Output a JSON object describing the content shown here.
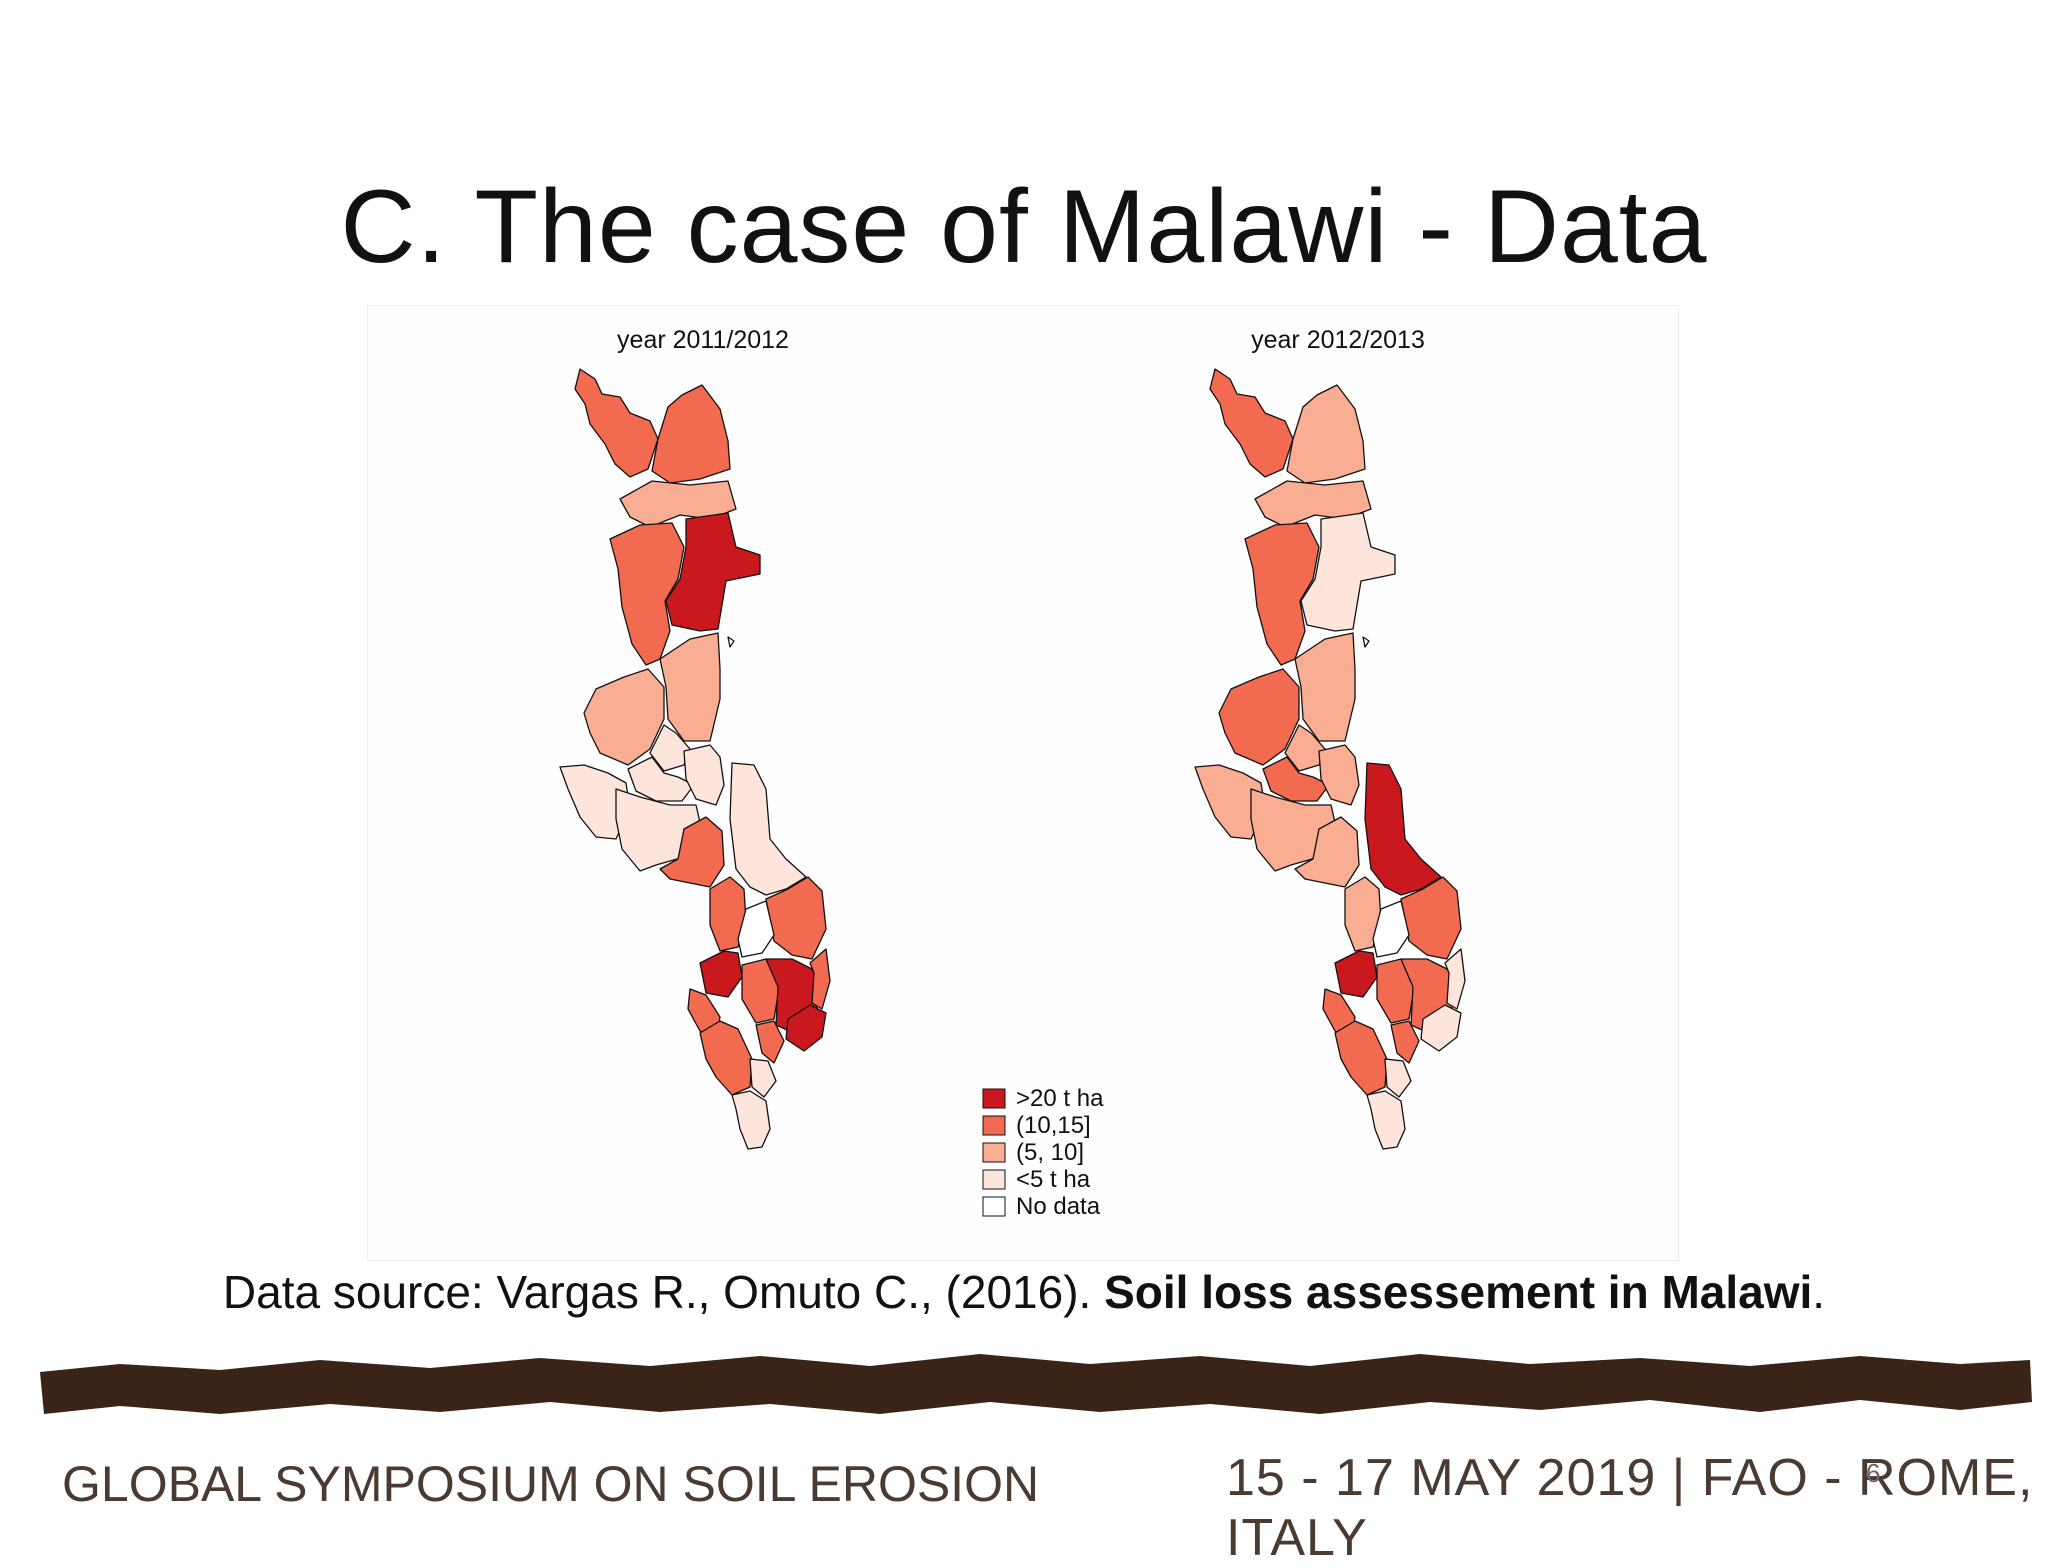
{
  "slide": {
    "title": "C. The case of Malawi - Data",
    "number": "6"
  },
  "maps": [
    {
      "title": "year 2011/2012"
    },
    {
      "title": "year 2012/2013"
    }
  ],
  "legend": {
    "items": [
      {
        "label": ">20 t ha",
        "color": "#c9191e"
      },
      {
        "label": "(10,15]",
        "color": "#f26a4f"
      },
      {
        "label": "(5, 10]",
        "color": "#f9ad92"
      },
      {
        "label": "<5 t ha",
        "color": "#fde5dc"
      },
      {
        "label": "No data",
        "color": "#ffffff"
      }
    ]
  },
  "caption": {
    "prefix": "Data source: Vargas R., Omuto C., (2016). ",
    "bold": "Soil loss assessement in Malawi",
    "suffix": "."
  },
  "footer": {
    "left": "GLOBAL SYMPOSIUM ON SOIL EROSION",
    "right": "15 - 17 MAY 2019 | FAO - ROME, ITALY"
  },
  "colors": {
    "c20": "#c9191e",
    "c10": "#f26a4f",
    "c5": "#f9ad92",
    "c0": "#fde5dc",
    "nodata": "#ffffff",
    "soil": "#3a2418"
  }
}
